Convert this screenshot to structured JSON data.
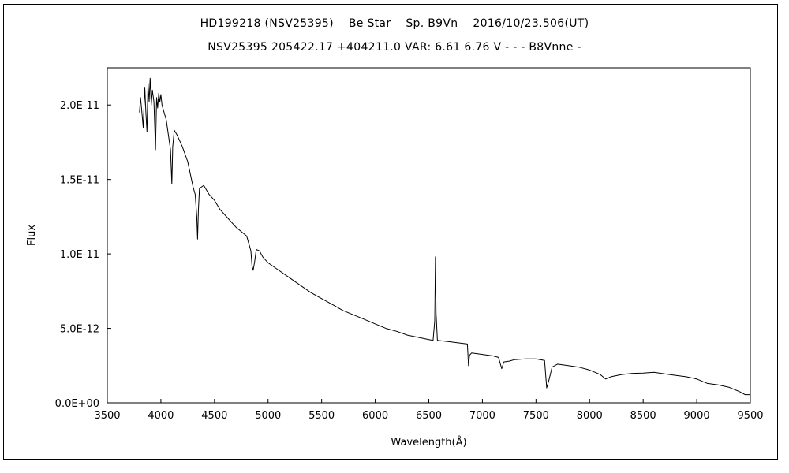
{
  "chart_data": {
    "type": "line",
    "title": "HD199218 (NSV25395)    Be Star    Sp. B9Vn    2016/10/23.506(UT)",
    "subtitle": "NSV25395 205422.17 +404211.0 VAR: 6.61 6.76 V - - - B8Vnne -",
    "xlabel": "Wavelength(Å)",
    "ylabel": "Flux",
    "xlim": [
      3500,
      9500
    ],
    "ylim": [
      0,
      2.25e-11
    ],
    "grid": false,
    "x_ticks": [
      3500,
      4000,
      4500,
      5000,
      5500,
      6000,
      6500,
      7000,
      7500,
      8000,
      8500,
      9000,
      9500
    ],
    "x_tick_labels": [
      "3500",
      "4000",
      "4500",
      "5000",
      "5500",
      "6000",
      "6500",
      "7000",
      "7500",
      "8000",
      "8500",
      "9000",
      "9500"
    ],
    "y_ticks": [
      0,
      5e-12,
      1e-11,
      1.5e-11,
      2e-11
    ],
    "y_tick_labels": [
      "0.0E+00",
      "5.0E-12",
      "1.0E-11",
      "1.5E-11",
      "2.0E-11"
    ],
    "series": [
      {
        "color": "#000000",
        "x": [
          3800,
          3810,
          3820,
          3835,
          3850,
          3860,
          3870,
          3880,
          3890,
          3900,
          3910,
          3920,
          3935,
          3950,
          3960,
          3970,
          3980,
          3990,
          4000,
          4010,
          4030,
          4050,
          4070,
          4090,
          4102,
          4110,
          4125,
          4150,
          4200,
          4250,
          4300,
          4320,
          4335,
          4342,
          4350,
          4360,
          4380,
          4400,
          4450,
          4500,
          4550,
          4600,
          4700,
          4800,
          4840,
          4850,
          4861,
          4875,
          4890,
          4920,
          4950,
          5000,
          5100,
          5200,
          5300,
          5400,
          5500,
          5600,
          5700,
          5800,
          5900,
          6000,
          6100,
          6200,
          6300,
          6400,
          6500,
          6540,
          6555,
          6562,
          6568,
          6580,
          6700,
          6860,
          6870,
          6880,
          6900,
          7000,
          7100,
          7150,
          7180,
          7200,
          7250,
          7300,
          7400,
          7500,
          7580,
          7600,
          7620,
          7650,
          7700,
          7800,
          7900,
          8000,
          8100,
          8150,
          8200,
          8300,
          8400,
          8500,
          8600,
          8700,
          8800,
          8900,
          9000,
          9100,
          9200,
          9300,
          9350,
          9400,
          9450,
          9500
        ],
        "y": [
          1.95e-11,
          2.05e-11,
          1.97e-11,
          1.85e-11,
          2.12e-11,
          1.95e-11,
          1.82e-11,
          2.15e-11,
          2.02e-11,
          2.18e-11,
          2e-11,
          2.1e-11,
          2.02e-11,
          1.7e-11,
          2.05e-11,
          1.98e-11,
          2.08e-11,
          2.02e-11,
          2.07e-11,
          2e-11,
          1.95e-11,
          1.9e-11,
          1.8e-11,
          1.7e-11,
          1.47e-11,
          1.72e-11,
          1.83e-11,
          1.8e-11,
          1.72e-11,
          1.62e-11,
          1.45e-11,
          1.4e-11,
          1.25e-11,
          1.1e-11,
          1.3e-11,
          1.44e-11,
          1.45e-11,
          1.46e-11,
          1.4e-11,
          1.36e-11,
          1.3e-11,
          1.26e-11,
          1.18e-11,
          1.12e-11,
          1.02e-11,
          9.2e-12,
          8.9e-12,
          9.5e-12,
          1.03e-11,
          1.02e-11,
          9.8e-12,
          9.4e-12,
          8.9e-12,
          8.4e-12,
          7.9e-12,
          7.4e-12,
          7e-12,
          6.6e-12,
          6.2e-12,
          5.9e-12,
          5.6e-12,
          5.3e-12,
          5e-12,
          4.8e-12,
          4.55e-12,
          4.4e-12,
          4.25e-12,
          4.2e-12,
          5.5e-12,
          9.8e-12,
          6e-12,
          4.2e-12,
          4.1e-12,
          3.95e-12,
          2.5e-12,
          3.2e-12,
          3.35e-12,
          3.25e-12,
          3.15e-12,
          3.05e-12,
          2.3e-12,
          2.75e-12,
          2.8e-12,
          2.9e-12,
          2.95e-12,
          2.95e-12,
          2.85e-12,
          1e-12,
          1.5e-12,
          2.4e-12,
          2.6e-12,
          2.5e-12,
          2.4e-12,
          2.2e-12,
          1.9e-12,
          1.6e-12,
          1.75e-12,
          1.9e-12,
          1.98e-12,
          2e-12,
          2.05e-12,
          1.95e-12,
          1.85e-12,
          1.75e-12,
          1.6e-12,
          1.3e-12,
          1.2e-12,
          1.05e-12,
          9e-13,
          7.5e-13,
          5.5e-13,
          5.5e-13
        ]
      }
    ]
  }
}
